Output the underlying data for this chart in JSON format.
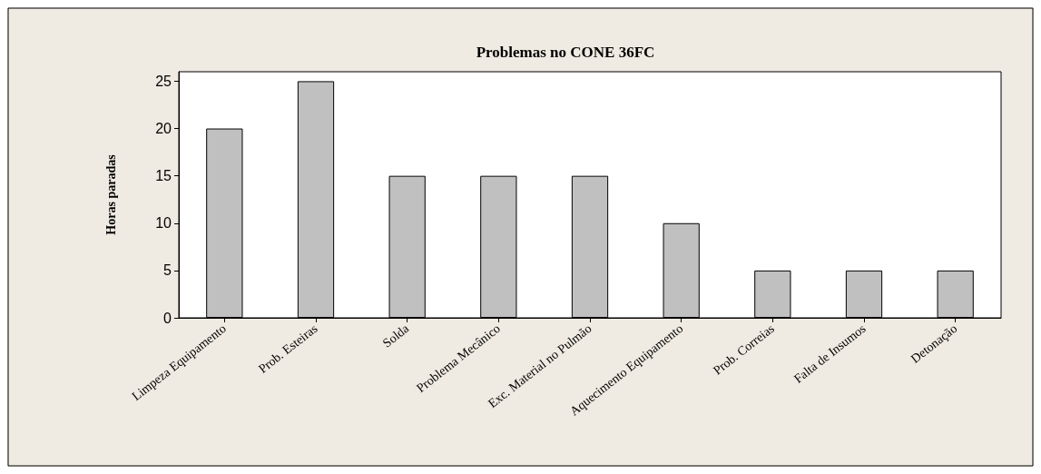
{
  "chart_data": {
    "type": "bar",
    "title": "Problemas no CONE 36FC",
    "ylabel": "Horas paradas",
    "categories": [
      "Limpeza Equipamento",
      "Prob. Esteiras",
      "Solda",
      "Problema Mecânico",
      "Exc. Material no Pulmão",
      "Aquecimento Equipamento",
      "Prob. Correias",
      "Falta de Insumos",
      "Detonação"
    ],
    "values": [
      20,
      25,
      15,
      15,
      15,
      10,
      5,
      5,
      5
    ],
    "color": "#c0c0c0",
    "ylim": [
      0,
      26
    ],
    "yticks": [
      0,
      5,
      10,
      15,
      20,
      25
    ]
  }
}
